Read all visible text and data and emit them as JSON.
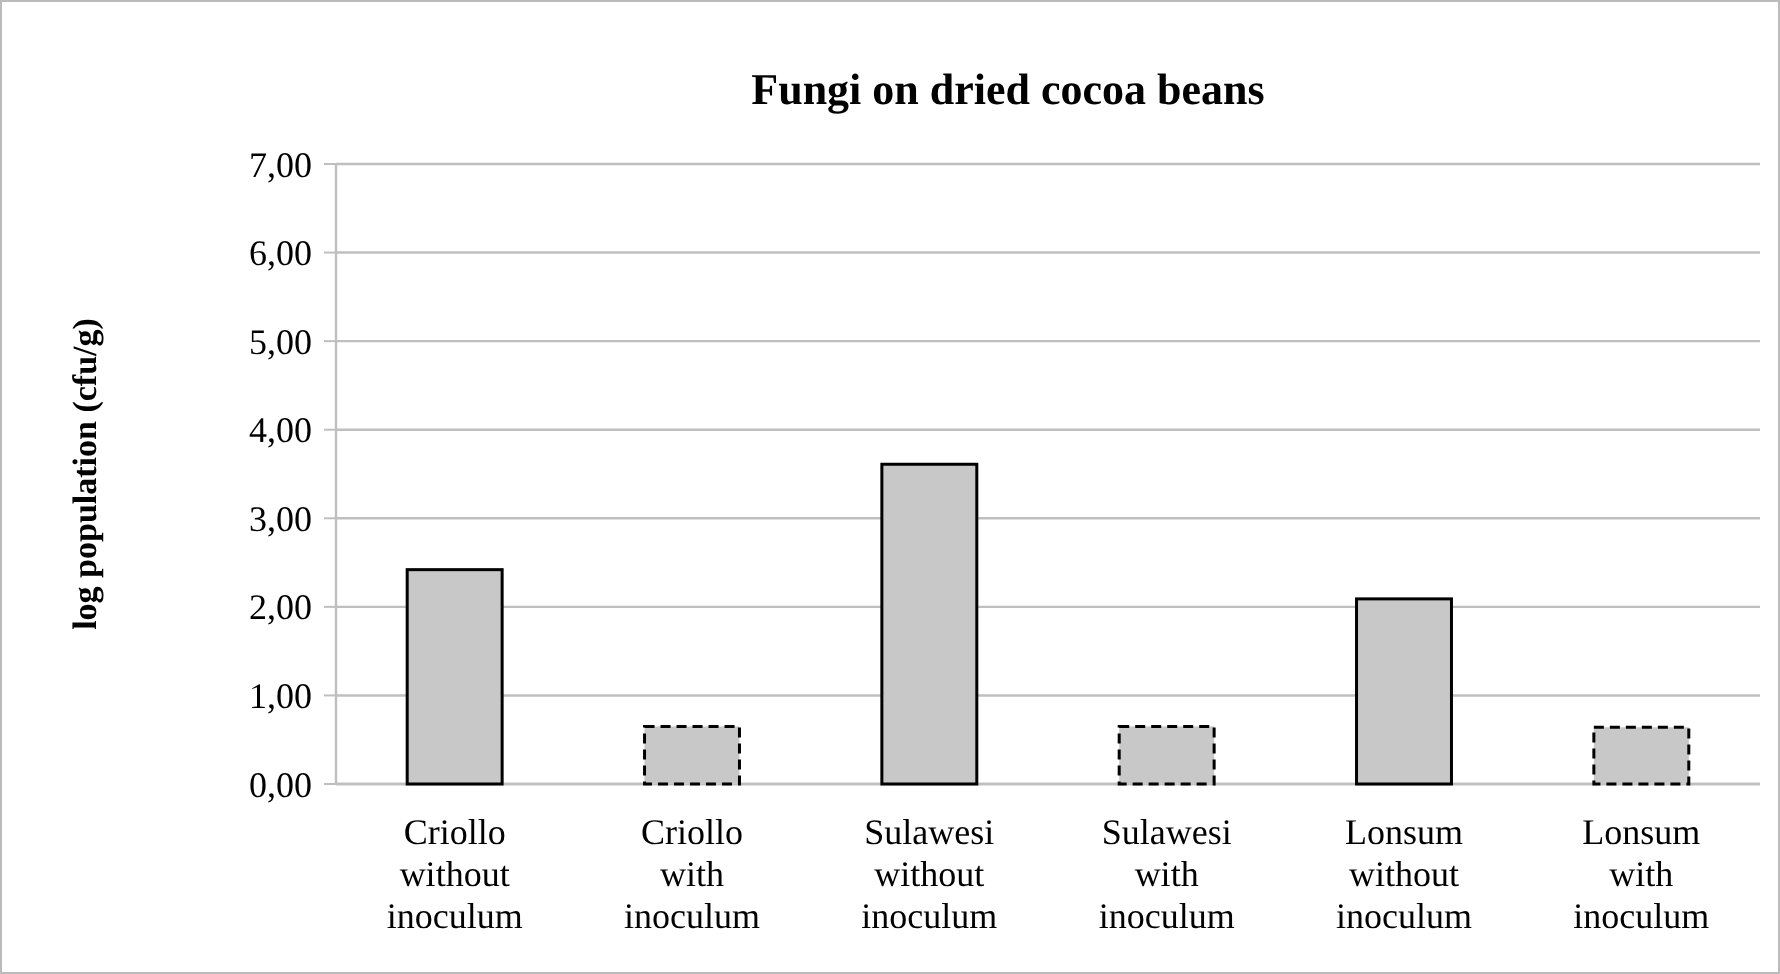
{
  "chart_data": {
    "type": "bar",
    "title": "Fungi on dried cocoa beans",
    "ylabel": "log population  (cfu/g)",
    "categories": [
      "Criollo without inoculum",
      "Criollo with inoculum",
      "Sulawesi without inoculum",
      "Sulawesi with inoculum",
      "Lonsum without inoculum",
      "Lonsum with inoculum"
    ],
    "stacked": true,
    "series": [
      {
        "color": "#c8c8c8",
        "line_style": "solid",
        "values": [
          2.42,
          null,
          3.61,
          null,
          2.09,
          null
        ]
      },
      {
        "color": "#c8c8c8",
        "line_style": "dashed",
        "values": [
          null,
          0.65,
          null,
          0.65,
          null,
          0.64
        ]
      }
    ],
    "ylim": [
      0,
      7
    ],
    "yticks": [
      {
        "value": 0,
        "label": "0,00"
      },
      {
        "value": 1,
        "label": "1,00"
      },
      {
        "value": 2,
        "label": "2,00"
      },
      {
        "value": 3,
        "label": "3,00"
      },
      {
        "value": 4,
        "label": "4,00"
      },
      {
        "value": 5,
        "label": "5,00"
      },
      {
        "value": 6,
        "label": "6,00"
      },
      {
        "value": 7,
        "label": "7,00"
      }
    ],
    "grid": "y"
  }
}
